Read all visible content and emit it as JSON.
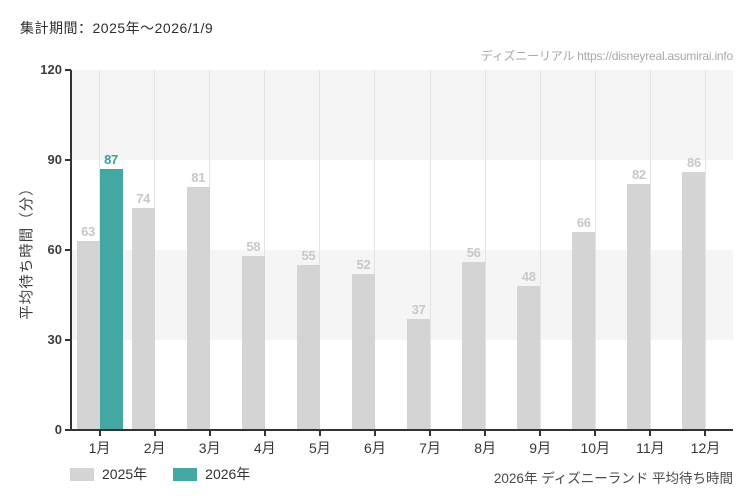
{
  "header": {
    "period_label": "集計期間：2025年～2026/1/9"
  },
  "watermark": {
    "text": "ディズニーリアル https://disneyreal.asumirai.info"
  },
  "footer": {
    "caption": "2026年 ディズニーランド 平均待ち時間"
  },
  "chart_data": {
    "type": "bar",
    "title": "",
    "xlabel": "",
    "ylabel": "平均待ち時間（分）",
    "ylim": [
      0,
      120
    ],
    "yticks": [
      0,
      30,
      60,
      90,
      120
    ],
    "categories": [
      "1月",
      "2月",
      "3月",
      "4月",
      "5月",
      "6月",
      "7月",
      "8月",
      "9月",
      "10月",
      "11月",
      "12月"
    ],
    "series": [
      {
        "name": "2025年",
        "color": "#d4d4d4",
        "label_color": "#c8c8c8",
        "values": [
          63,
          74,
          81,
          58,
          55,
          52,
          37,
          56,
          48,
          66,
          82,
          86
        ]
      },
      {
        "name": "2026年",
        "color": "#43a8a1",
        "label_color": "#3aa098",
        "values": [
          87,
          null,
          null,
          null,
          null,
          null,
          null,
          null,
          null,
          null,
          null,
          null
        ]
      }
    ],
    "grid": "vertical gridlines at month tick centers; alternating horizontal bands",
    "band_color": "#f5f5f5",
    "gridline_color": "#e3e3e3",
    "axis_color": "#333333",
    "legend_position": "bottom-left"
  }
}
